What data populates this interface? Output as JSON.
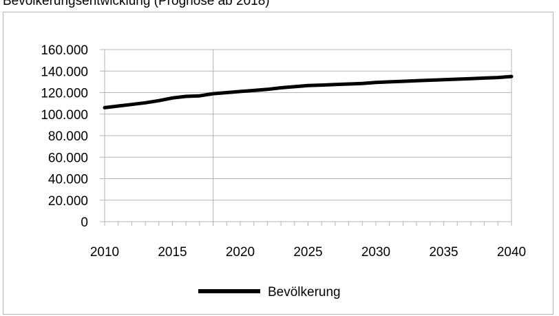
{
  "chart_data": {
    "type": "line",
    "title": "Bevölkerungsentwicklung (Prognose ab 2018)",
    "xlabel": "",
    "ylabel": "",
    "xlim": [
      2010,
      2040
    ],
    "ylim": [
      0,
      160000
    ],
    "yticks": [
      0,
      20000,
      40000,
      60000,
      80000,
      100000,
      120000,
      140000,
      160000
    ],
    "ytick_labels": [
      "0",
      "20.000",
      "40.000",
      "60.000",
      "80.000",
      "100.000",
      "120.000",
      "140.000",
      "160.000"
    ],
    "xticks": [
      2010,
      2015,
      2020,
      2025,
      2030,
      2035,
      2040
    ],
    "xtick_labels": [
      "2010",
      "2015",
      "2020",
      "2025",
      "2030",
      "2035",
      "2040"
    ],
    "marker_year": 2018,
    "grid": "horizontal",
    "legend_position": "bottom",
    "series": [
      {
        "name": "Bevölkerung",
        "color": "#000000",
        "x": [
          2010,
          2011,
          2012,
          2013,
          2014,
          2015,
          2016,
          2017,
          2018,
          2019,
          2020,
          2021,
          2022,
          2023,
          2024,
          2025,
          2026,
          2027,
          2028,
          2029,
          2030,
          2031,
          2032,
          2033,
          2034,
          2035,
          2036,
          2037,
          2038,
          2039,
          2040
        ],
        "y": [
          106000,
          107500,
          109000,
          110500,
          112500,
          115000,
          116500,
          117000,
          119000,
          120000,
          121000,
          122000,
          123000,
          124500,
          125500,
          126500,
          127000,
          127500,
          128000,
          128500,
          129500,
          130000,
          130500,
          131000,
          131500,
          132000,
          132500,
          133000,
          133500,
          134000,
          135000
        ]
      }
    ]
  }
}
